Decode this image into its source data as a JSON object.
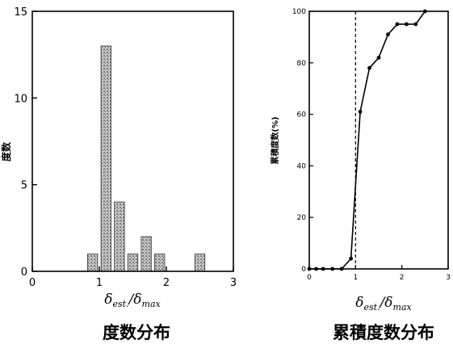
{
  "chart_data": [
    {
      "type": "bar",
      "title": "度数分布",
      "ylabel": "度数",
      "xlabel": {
        "symbol": "δ",
        "numerator_sub": "est.",
        "sep": "/",
        "denominator_sub": "max"
      },
      "xlim": [
        0,
        3
      ],
      "ylim": [
        0,
        15
      ],
      "xticks": [
        "0",
        "1",
        "2",
        "3"
      ],
      "yticks": [
        "0",
        "5",
        "10",
        "15"
      ],
      "bin_width": 0.15,
      "bins": [
        {
          "x": 0.9,
          "value": 1
        },
        {
          "x": 1.1,
          "value": 13
        },
        {
          "x": 1.3,
          "value": 4
        },
        {
          "x": 1.5,
          "value": 1
        },
        {
          "x": 1.7,
          "value": 2
        },
        {
          "x": 1.9,
          "value": 1
        },
        {
          "x": 2.5,
          "value": 1
        }
      ],
      "bar_fill": "#b9b9b9",
      "grid": false
    },
    {
      "type": "line",
      "title": "累積度数分布",
      "ylabel": "累積度数(%)",
      "xlabel": {
        "symbol": "δ",
        "numerator_sub": "est.",
        "sep": "/",
        "denominator_sub": "max"
      },
      "xlim": [
        0,
        3
      ],
      "ylim": [
        0,
        100
      ],
      "xticks": [
        "0",
        "1",
        "2",
        "3"
      ],
      "yticks": [
        "0",
        "20",
        "40",
        "60",
        "80",
        "100"
      ],
      "points": [
        {
          "x": 0.0,
          "y": 0
        },
        {
          "x": 0.15,
          "y": 0
        },
        {
          "x": 0.3,
          "y": 0
        },
        {
          "x": 0.5,
          "y": 0
        },
        {
          "x": 0.7,
          "y": 0
        },
        {
          "x": 0.9,
          "y": 4
        },
        {
          "x": 1.1,
          "y": 61
        },
        {
          "x": 1.3,
          "y": 78
        },
        {
          "x": 1.5,
          "y": 82
        },
        {
          "x": 1.7,
          "y": 91
        },
        {
          "x": 1.9,
          "y": 95
        },
        {
          "x": 2.1,
          "y": 95
        },
        {
          "x": 2.3,
          "y": 95
        },
        {
          "x": 2.5,
          "y": 100
        }
      ],
      "reference_line": {
        "x": 1.0,
        "style": "dashed"
      },
      "grid": false
    }
  ]
}
